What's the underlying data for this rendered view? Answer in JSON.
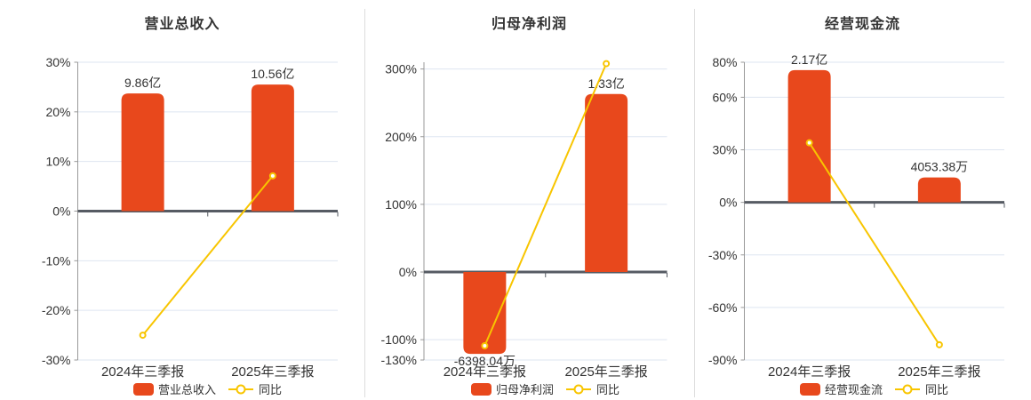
{
  "colors": {
    "bar": "#e8481c",
    "line": "#f8c500",
    "grid": "#dee5f1",
    "axis_line": "#999999",
    "zero_axis": "#565b63",
    "divider": "#dcdcdc",
    "text": "#333333",
    "background": "#ffffff"
  },
  "chart_data": [
    {
      "type": "bar",
      "title": "营业总收入",
      "categories": [
        "2024年三季报",
        "2025年三季报"
      ],
      "series": [
        {
          "name": "营业总收入",
          "type": "bar",
          "value_labels": [
            "9.86亿",
            "10.56亿"
          ],
          "bar_axis_pct": [
            23.7,
            25.5
          ]
        },
        {
          "name": "同比",
          "type": "line",
          "values_pct": [
            -25.0,
            7.1
          ]
        }
      ],
      "y_ticks": [
        30,
        20,
        10,
        0,
        -10,
        -20,
        -30
      ],
      "y_tick_suffix": "%",
      "ylim": [
        -30,
        30
      ],
      "legend": [
        "营业总收入",
        "同比"
      ],
      "grid": true,
      "legend_position": "bottom"
    },
    {
      "type": "bar",
      "title": "归母净利润",
      "categories": [
        "2024年三季报",
        "2025年三季报"
      ],
      "series": [
        {
          "name": "归母净利润",
          "type": "bar",
          "value_labels": [
            "-6398.04万",
            "1.33亿"
          ],
          "bar_axis_pct": [
            -121,
            263
          ]
        },
        {
          "name": "同比",
          "type": "line",
          "values_pct": [
            -109.0,
            307.9
          ]
        }
      ],
      "y_ticks": [
        300,
        200,
        100,
        0,
        -100,
        -130
      ],
      "y_tick_suffix": "%",
      "ylim": [
        -130,
        310
      ],
      "legend": [
        "归母净利润",
        "同比"
      ],
      "grid": true,
      "legend_position": "bottom"
    },
    {
      "type": "bar",
      "title": "经营现金流",
      "categories": [
        "2024年三季报",
        "2025年三季报"
      ],
      "series": [
        {
          "name": "经营现金流",
          "type": "bar",
          "value_labels": [
            "2.17亿",
            "4053.38万"
          ],
          "bar_axis_pct": [
            75.5,
            14.2
          ]
        },
        {
          "name": "同比",
          "type": "line",
          "values_pct": [
            34.0,
            -81.3
          ]
        }
      ],
      "y_ticks": [
        80,
        60,
        30,
        0,
        -30,
        -60,
        -90
      ],
      "y_tick_suffix": "%",
      "ylim": [
        -90,
        80
      ],
      "legend": [
        "经营现金流",
        "同比"
      ],
      "grid": true,
      "legend_position": "bottom"
    }
  ]
}
